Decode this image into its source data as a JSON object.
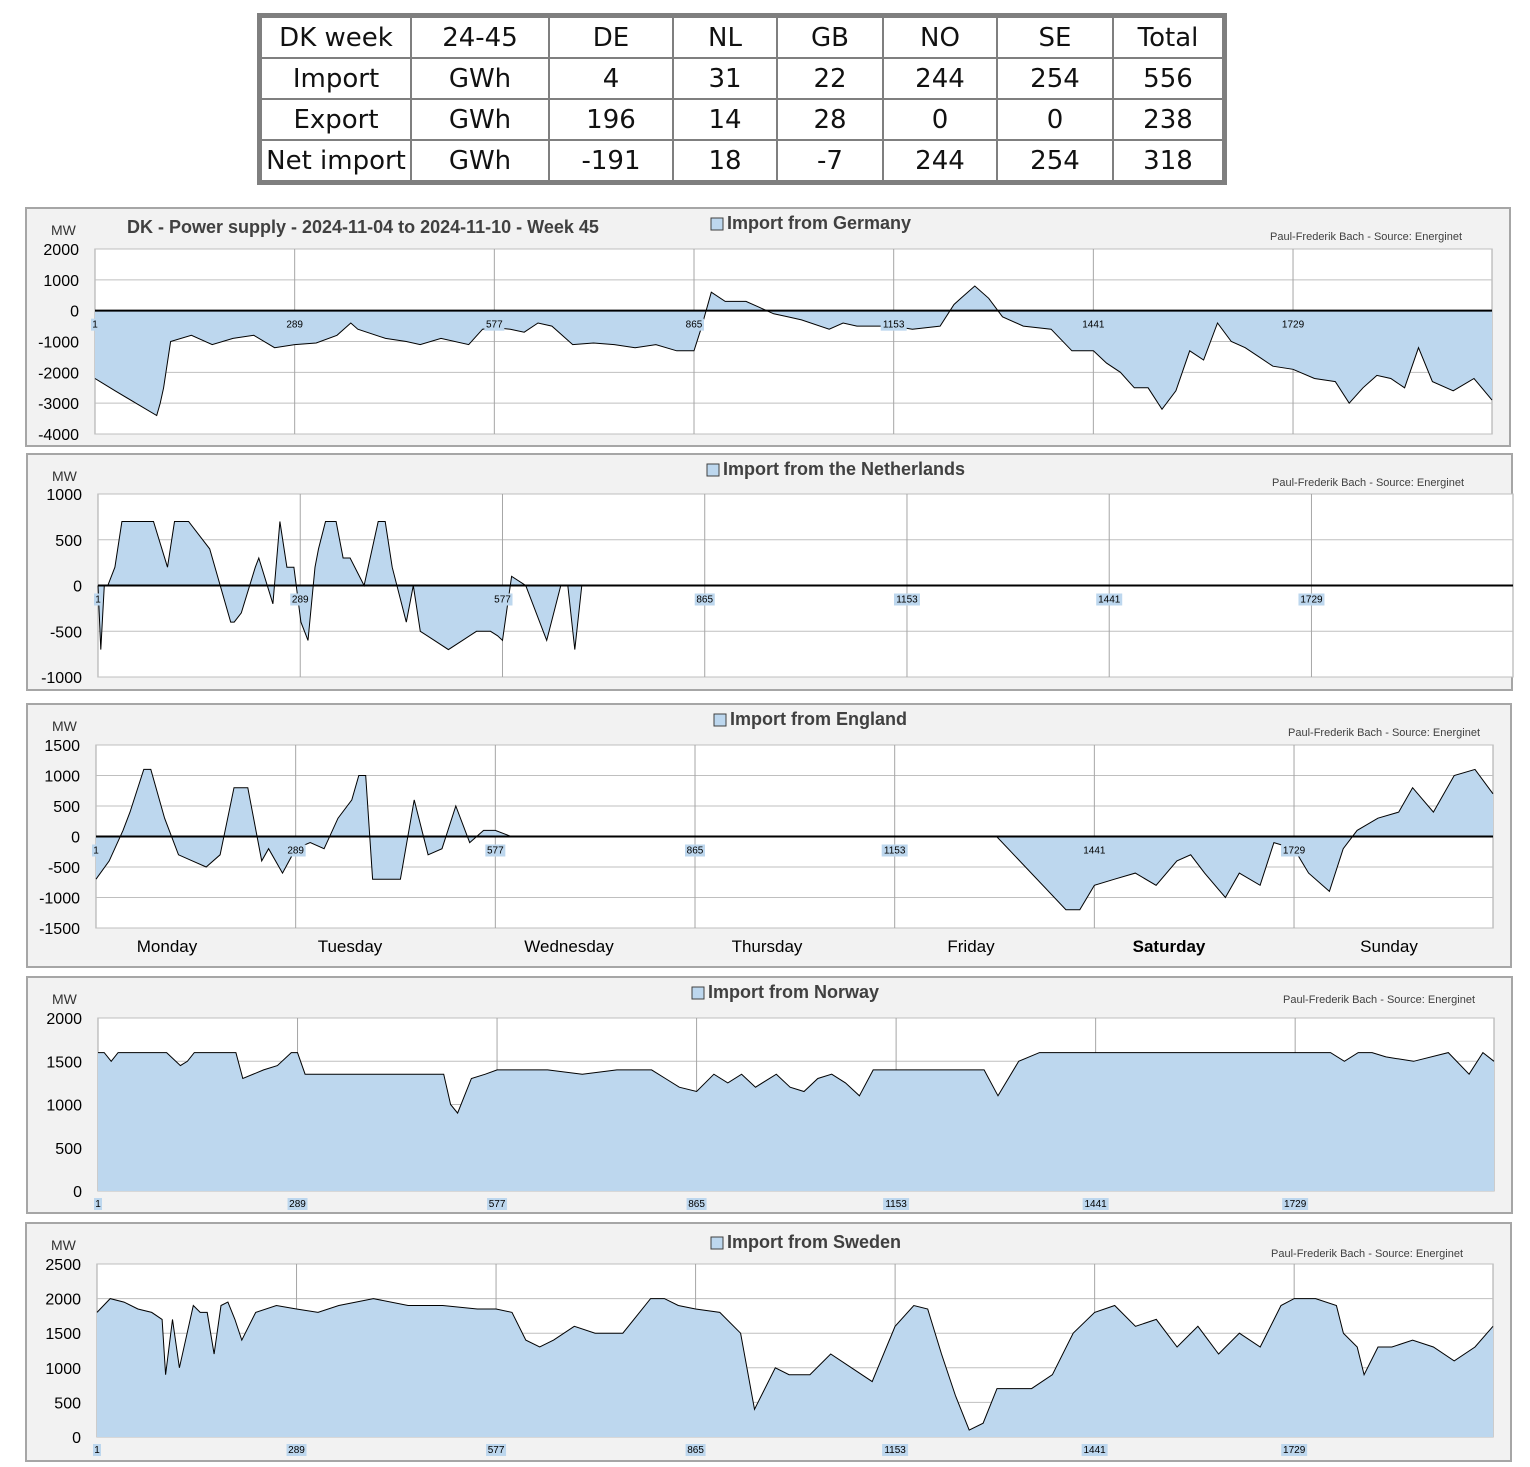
{
  "table": {
    "rows": [
      [
        "DK week",
        "24-45",
        "DE",
        "NL",
        "GB",
        "NO",
        "SE",
        "Total"
      ],
      [
        "Import",
        "GWh",
        "4",
        "31",
        "22",
        "244",
        "254",
        "556"
      ],
      [
        "Export",
        "GWh",
        "196",
        "14",
        "28",
        "0",
        "0",
        "238"
      ],
      [
        "Net import",
        "GWh",
        "-191",
        "18",
        "-7",
        "244",
        "254",
        "318"
      ]
    ]
  },
  "colors": {
    "area_fill": "#bdd7ee",
    "line": "#000000",
    "panel_bg": "#f2f2f2",
    "grid": "#a6a6a6"
  },
  "x_ticks": [
    "1",
    "289",
    "577",
    "865",
    "1153",
    "1441",
    "1729"
  ],
  "x_max": 2016,
  "day_labels": [
    "Monday",
    "Tuesday",
    "Wednesday",
    "Thursday",
    "Friday",
    "Saturday",
    "Sunday"
  ],
  "chart_data": [
    {
      "type": "area",
      "title": "DK - Power supply - 2024-11-04 to 2024-11-10 - Week 45",
      "legend": "Import from Germany",
      "credit": "Paul-Frederik Bach - Source: Energinet",
      "ylabel": "MW",
      "ylim": [
        -4000,
        2000
      ],
      "yticks": [
        2000,
        1000,
        0,
        -1000,
        -2000,
        -3000,
        -4000
      ],
      "x": [
        1,
        30,
        60,
        90,
        95,
        100,
        110,
        140,
        170,
        200,
        230,
        260,
        289,
        320,
        350,
        370,
        380,
        420,
        450,
        470,
        500,
        540,
        560,
        577,
        600,
        620,
        640,
        660,
        690,
        720,
        750,
        780,
        810,
        840,
        865,
        875,
        890,
        910,
        940,
        960,
        980,
        1000,
        1020,
        1060,
        1080,
        1100,
        1130,
        1153,
        1180,
        1220,
        1240,
        1250,
        1270,
        1290,
        1310,
        1340,
        1380,
        1410,
        1441,
        1460,
        1480,
        1500,
        1520,
        1540,
        1560,
        1580,
        1600,
        1620,
        1640,
        1660,
        1680,
        1700,
        1729,
        1760,
        1790,
        1810,
        1830,
        1850,
        1870,
        1890,
        1910,
        1930,
        1960,
        1990,
        2016
      ],
      "values": [
        -2200,
        -2600,
        -3000,
        -3400,
        -3000,
        -2500,
        -1000,
        -800,
        -1100,
        -900,
        -800,
        -1200,
        -1100,
        -1050,
        -800,
        -400,
        -600,
        -900,
        -1000,
        -1100,
        -900,
        -1100,
        -600,
        -550,
        -600,
        -700,
        -400,
        -500,
        -1100,
        -1050,
        -1100,
        -1200,
        -1100,
        -1300,
        -1300,
        -600,
        600,
        300,
        300,
        100,
        -100,
        -200,
        -300,
        -600,
        -400,
        -500,
        -500,
        -500,
        -600,
        -500,
        200,
        400,
        800,
        400,
        -200,
        -500,
        -600,
        -1300,
        -1300,
        -1700,
        -2000,
        -2500,
        -2500,
        -3200,
        -2600,
        -1300,
        -1600,
        -400,
        -1000,
        -1200,
        -1500,
        -1800,
        -1900,
        -2200,
        -2300,
        -3000,
        -2500,
        -2100,
        -2200,
        -2500,
        -1200,
        -2300,
        -2600,
        -2200,
        -2900
      ]
    },
    {
      "type": "area",
      "legend": "Import from the Netherlands",
      "credit": "Paul-Frederik Bach - Source: Energinet",
      "ylabel": "MW",
      "ylim": [
        -1000,
        1000
      ],
      "yticks": [
        1000,
        500,
        0,
        -500,
        -1000
      ],
      "x": [
        1,
        5,
        10,
        15,
        25,
        35,
        50,
        80,
        100,
        110,
        130,
        160,
        190,
        195,
        205,
        225,
        230,
        250,
        260,
        270,
        280,
        290,
        295,
        300,
        310,
        315,
        325,
        340,
        350,
        360,
        380,
        400,
        410,
        420,
        440,
        450,
        460,
        480,
        500,
        520,
        540,
        560,
        570,
        577,
        590,
        610,
        640,
        660,
        670,
        680,
        690,
        700,
        720,
        740,
        780,
        820,
        860,
        865,
        940,
        1030,
        1060,
        1080,
        1100,
        1120,
        1140,
        1160,
        1190,
        1200,
        1220,
        1420,
        1440,
        1450,
        1470,
        1480,
        1510,
        1520,
        1540,
        1560,
        1580,
        1600,
        1620,
        1640,
        1650,
        1670,
        1690,
        1720,
        1729,
        1750,
        1800,
        1820,
        1860,
        1900,
        1940,
        1970,
        2000,
        2016
      ],
      "values": [
        0,
        -700,
        0,
        0,
        200,
        700,
        700,
        700,
        200,
        700,
        700,
        400,
        -400,
        -400,
        -300,
        200,
        300,
        -200,
        700,
        200,
        200,
        -400,
        -500,
        -600,
        200,
        400,
        700,
        700,
        300,
        300,
        0,
        700,
        700,
        200,
        -400,
        0,
        -500,
        -600,
        -700,
        -600,
        -500,
        -500,
        -550,
        -600,
        100,
        0,
        -600,
        0,
        0,
        -700,
        0,
        0,
        0,
        0,
        0,
        0,
        0,
        0,
        0,
        0,
        0,
        0,
        0,
        0,
        0,
        0,
        0,
        0,
        0,
        0,
        0,
        0,
        0,
        0,
        0,
        0,
        0,
        0,
        0,
        0,
        0,
        0,
        0,
        0,
        0,
        0,
        0,
        0,
        0,
        0,
        0,
        0,
        0,
        0,
        0,
        0
      ]
    },
    {
      "type": "area",
      "legend": "Import from England",
      "credit": "Paul-Frederik Bach - Source: Energinet",
      "ylabel": "MW",
      "ylim": [
        -1500,
        1500
      ],
      "yticks": [
        1500,
        1000,
        500,
        0,
        -500,
        -1000,
        -1500
      ],
      "x": [
        1,
        20,
        40,
        50,
        70,
        80,
        100,
        120,
        140,
        160,
        180,
        200,
        220,
        240,
        250,
        270,
        289,
        310,
        330,
        350,
        370,
        380,
        390,
        400,
        420,
        440,
        460,
        480,
        500,
        520,
        540,
        560,
        577,
        600,
        620,
        650,
        700,
        800,
        900,
        1000,
        1100,
        1200,
        1300,
        1400,
        1420,
        1441,
        1470,
        1500,
        1530,
        1560,
        1580,
        1600,
        1630,
        1650,
        1680,
        1700,
        1729,
        1750,
        1780,
        1800,
        1820,
        1850,
        1880,
        1900,
        1930,
        1960,
        1990,
        2016
      ],
      "values": [
        -700,
        -400,
        100,
        400,
        1100,
        1100,
        300,
        -300,
        -400,
        -500,
        -300,
        800,
        800,
        -400,
        -200,
        -600,
        -200,
        -100,
        -200,
        300,
        600,
        1000,
        1000,
        -700,
        -700,
        -700,
        600,
        -300,
        -200,
        500,
        -100,
        100,
        100,
        0,
        0,
        0,
        0,
        0,
        0,
        0,
        0,
        0,
        0,
        -1200,
        -1200,
        -800,
        -700,
        -600,
        -800,
        -400,
        -300,
        -600,
        -1000,
        -600,
        -800,
        -100,
        -200,
        -600,
        -900,
        -200,
        100,
        300,
        400,
        800,
        400,
        1000,
        1100,
        700
      ]
    },
    {
      "type": "area",
      "legend": "Import from Norway",
      "credit": "Paul-Frederik Bach - Source: Energinet",
      "ylabel": "MW",
      "ylim": [
        0,
        2000
      ],
      "yticks": [
        2000,
        1500,
        1000,
        500,
        0
      ],
      "x": [
        1,
        10,
        20,
        30,
        100,
        120,
        130,
        140,
        180,
        200,
        210,
        240,
        260,
        280,
        289,
        300,
        350,
        450,
        500,
        510,
        520,
        540,
        560,
        577,
        600,
        650,
        700,
        750,
        800,
        820,
        840,
        865,
        890,
        910,
        930,
        950,
        980,
        1000,
        1020,
        1040,
        1060,
        1080,
        1100,
        1120,
        1153,
        1200,
        1280,
        1300,
        1330,
        1360,
        1400,
        1441,
        1500,
        1550,
        1600,
        1650,
        1700,
        1729,
        1780,
        1800,
        1820,
        1840,
        1860,
        1900,
        1950,
        1980,
        2000,
        2016
      ],
      "values": [
        1600,
        1600,
        1500,
        1600,
        1600,
        1450,
        1500,
        1600,
        1600,
        1600,
        1300,
        1400,
        1450,
        1600,
        1600,
        1350,
        1350,
        1350,
        1350,
        1000,
        900,
        1300,
        1350,
        1400,
        1400,
        1400,
        1350,
        1400,
        1400,
        1300,
        1200,
        1150,
        1350,
        1250,
        1350,
        1200,
        1350,
        1200,
        1150,
        1300,
        1350,
        1250,
        1100,
        1400,
        1400,
        1400,
        1400,
        1100,
        1500,
        1600,
        1600,
        1600,
        1600,
        1600,
        1600,
        1600,
        1600,
        1600,
        1600,
        1500,
        1600,
        1600,
        1550,
        1500,
        1600,
        1350,
        1600,
        1500
      ]
    },
    {
      "type": "area",
      "legend": "Import from Sweden",
      "credit": "Paul-Frederik Bach - Source: Energinet",
      "ylabel": "MW",
      "ylim": [
        0,
        2500
      ],
      "yticks": [
        2500,
        2000,
        1500,
        1000,
        500,
        0
      ],
      "x": [
        1,
        20,
        40,
        60,
        80,
        95,
        100,
        110,
        120,
        140,
        150,
        160,
        170,
        180,
        190,
        200,
        210,
        230,
        260,
        289,
        320,
        350,
        400,
        450,
        500,
        550,
        577,
        600,
        620,
        640,
        660,
        690,
        720,
        760,
        800,
        820,
        840,
        865,
        900,
        930,
        950,
        980,
        1000,
        1030,
        1060,
        1090,
        1120,
        1153,
        1180,
        1200,
        1220,
        1240,
        1260,
        1280,
        1300,
        1320,
        1350,
        1380,
        1410,
        1441,
        1470,
        1500,
        1530,
        1560,
        1590,
        1620,
        1650,
        1680,
        1710,
        1729,
        1760,
        1790,
        1800,
        1820,
        1830,
        1850,
        1870,
        1900,
        1930,
        1960,
        1990,
        2016
      ],
      "values": [
        1800,
        2000,
        1950,
        1850,
        1800,
        1700,
        900,
        1700,
        1000,
        1900,
        1800,
        1800,
        1200,
        1900,
        1950,
        1700,
        1400,
        1800,
        1900,
        1850,
        1800,
        1900,
        2000,
        1900,
        1900,
        1850,
        1850,
        1800,
        1400,
        1300,
        1400,
        1600,
        1500,
        1500,
        2000,
        2000,
        1900,
        1850,
        1800,
        1500,
        400,
        1000,
        900,
        900,
        1200,
        1000,
        800,
        1600,
        1900,
        1850,
        1200,
        600,
        100,
        200,
        700,
        700,
        700,
        900,
        1500,
        1800,
        1900,
        1600,
        1700,
        1300,
        1600,
        1200,
        1500,
        1300,
        1900,
        2000,
        2000,
        1900,
        1500,
        1300,
        900,
        1300,
        1300,
        1400,
        1300,
        1100,
        1300,
        1600
      ]
    }
  ]
}
